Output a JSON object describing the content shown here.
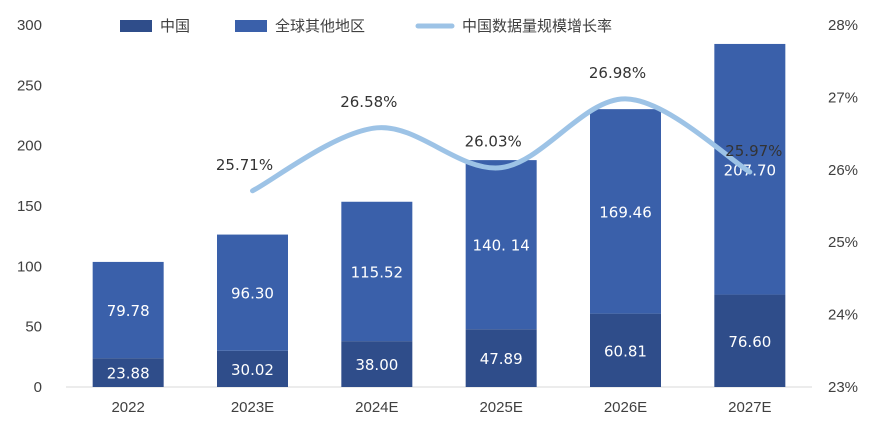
{
  "chart_data": {
    "type": "bar",
    "stacked": true,
    "categories": [
      "2022",
      "2023E",
      "2024E",
      "2025E",
      "2026E",
      "2027E"
    ],
    "series": [
      {
        "name": "中国",
        "values": [
          23.88,
          30.02,
          38.0,
          47.89,
          60.81,
          76.6
        ],
        "labels": [
          "23.88",
          "30.02",
          "38.00",
          "47.89",
          "60.81",
          "76.60"
        ],
        "color": "#2f4d8a"
      },
      {
        "name": "全球其他地区",
        "values": [
          79.78,
          96.3,
          115.52,
          140.14,
          169.46,
          207.7
        ],
        "labels": [
          "79.78",
          "96.30",
          "115.52",
          "140. 14",
          "169.46",
          "207.70"
        ],
        "color": "#3a60aa"
      }
    ],
    "line_series": {
      "name": "中国数据量规模增长率",
      "axis": "right",
      "color": "#9dc3e6",
      "values": [
        null,
        25.71,
        26.58,
        26.03,
        26.98,
        25.97
      ],
      "labels": [
        "",
        "25.71%",
        "26.58%",
        "26.03%",
        "26.98%",
        "25.97%"
      ]
    },
    "y_left": {
      "min": 0,
      "max": 300,
      "ticks": [
        "0",
        "50",
        "100",
        "150",
        "200",
        "250",
        "300"
      ]
    },
    "y_right": {
      "min": 23,
      "max": 28,
      "ticks": [
        "23%",
        "24%",
        "25%",
        "26%",
        "27%",
        "28%"
      ]
    },
    "legend_position": "top",
    "grid": false
  }
}
